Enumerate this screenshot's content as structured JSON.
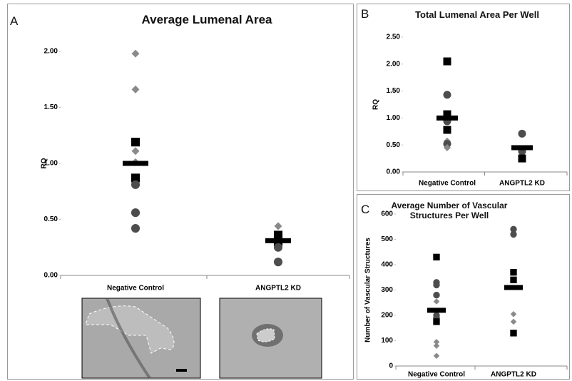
{
  "chart_data": [
    {
      "type": "dot",
      "panel_label": "A",
      "title": "Average Lumenal Area",
      "ylabel": "RQ",
      "categories": [
        "Negative Control",
        "ANGPTL2 KD"
      ],
      "ylim": [
        0,
        2
      ],
      "yticks": [
        {
          "value": 0,
          "label": "0.00"
        },
        {
          "value": 0.5,
          "label": "0.50"
        },
        {
          "value": 1,
          "label": "1.00"
        },
        {
          "value": 1.5,
          "label": "1.50"
        },
        {
          "value": 2,
          "label": "2.00"
        }
      ],
      "marker_colors": {
        "diamond": "#8a8a8a",
        "square": "#000000",
        "circle": "#4d4d4d"
      },
      "mean_color": "#000000",
      "points": [
        [
          {
            "value": 1.98,
            "marker": "diamond"
          },
          {
            "value": 1.66,
            "marker": "diamond"
          },
          {
            "value": 1.19,
            "marker": "square"
          },
          {
            "value": 1.11,
            "marker": "diamond"
          },
          {
            "value": 1.01,
            "marker": "diamond"
          },
          {
            "value": 0.87,
            "marker": "square"
          },
          {
            "value": 0.81,
            "marker": "circle"
          },
          {
            "value": 0.56,
            "marker": "circle"
          },
          {
            "value": 0.42,
            "marker": "circle"
          }
        ],
        [
          {
            "value": 0.44,
            "marker": "diamond"
          },
          {
            "value": 0.36,
            "marker": "square"
          },
          {
            "value": 0.3,
            "marker": "square"
          },
          {
            "value": 0.25,
            "marker": "circle"
          },
          {
            "value": 0.12,
            "marker": "circle"
          }
        ]
      ],
      "means": [
        1.0,
        0.31
      ]
    },
    {
      "type": "dot",
      "panel_label": "B",
      "title": "Total Lumenal Area Per Well",
      "ylabel": "RQ",
      "categories": [
        "Negative Control",
        "ANGPTL2 KD"
      ],
      "ylim": [
        0,
        2.5
      ],
      "yticks": [
        {
          "value": 0,
          "label": "0.00"
        },
        {
          "value": 0.5,
          "label": "0.50"
        },
        {
          "value": 1,
          "label": "1.00"
        },
        {
          "value": 1.5,
          "label": "1.50"
        },
        {
          "value": 2,
          "label": "2.00"
        },
        {
          "value": 2.5,
          "label": "2.50"
        }
      ],
      "marker_colors": {
        "diamond": "#8a8a8a",
        "square": "#000000",
        "circle": "#4d4d4d"
      },
      "mean_color": "#000000",
      "points": [
        [
          {
            "value": 2.05,
            "marker": "square"
          },
          {
            "value": 1.43,
            "marker": "circle"
          },
          {
            "value": 1.07,
            "marker": "square"
          },
          {
            "value": 0.94,
            "marker": "circle"
          },
          {
            "value": 0.78,
            "marker": "square"
          },
          {
            "value": 0.57,
            "marker": "diamond"
          },
          {
            "value": 0.52,
            "marker": "circle"
          },
          {
            "value": 0.45,
            "marker": "diamond"
          }
        ],
        [
          {
            "value": 0.71,
            "marker": "circle"
          },
          {
            "value": 0.38,
            "marker": "circle"
          },
          {
            "value": 0.25,
            "marker": "square"
          }
        ]
      ],
      "means": [
        1.0,
        0.45
      ]
    },
    {
      "type": "dot",
      "panel_label": "C",
      "title": "Average Number of Vascular Structures Per Well",
      "ylabel": "Number of Vascular Structures",
      "categories": [
        "Negative Control",
        "ANGPTL2 KD"
      ],
      "ylim": [
        0,
        600
      ],
      "yticks": [
        0,
        100,
        200,
        300,
        400,
        500,
        600
      ],
      "marker_colors": {
        "diamond": "#8a8a8a",
        "square": "#000000",
        "circle": "#4d4d4d"
      },
      "mean_color": "#000000",
      "points": [
        [
          {
            "value": 430,
            "marker": "square"
          },
          {
            "value": 330,
            "marker": "circle"
          },
          {
            "value": 320,
            "marker": "circle"
          },
          {
            "value": 280,
            "marker": "circle"
          },
          {
            "value": 255,
            "marker": "diamond"
          },
          {
            "value": 200,
            "marker": "circle"
          },
          {
            "value": 190,
            "marker": "circle"
          },
          {
            "value": 175,
            "marker": "square"
          },
          {
            "value": 95,
            "marker": "diamond"
          },
          {
            "value": 80,
            "marker": "diamond"
          },
          {
            "value": 40,
            "marker": "diamond"
          }
        ],
        [
          {
            "value": 540,
            "marker": "circle"
          },
          {
            "value": 520,
            "marker": "circle"
          },
          {
            "value": 370,
            "marker": "square"
          },
          {
            "value": 340,
            "marker": "square"
          },
          {
            "value": 205,
            "marker": "diamond"
          },
          {
            "value": 175,
            "marker": "diamond"
          },
          {
            "value": 130,
            "marker": "square"
          }
        ]
      ],
      "means": [
        220,
        310
      ]
    }
  ]
}
